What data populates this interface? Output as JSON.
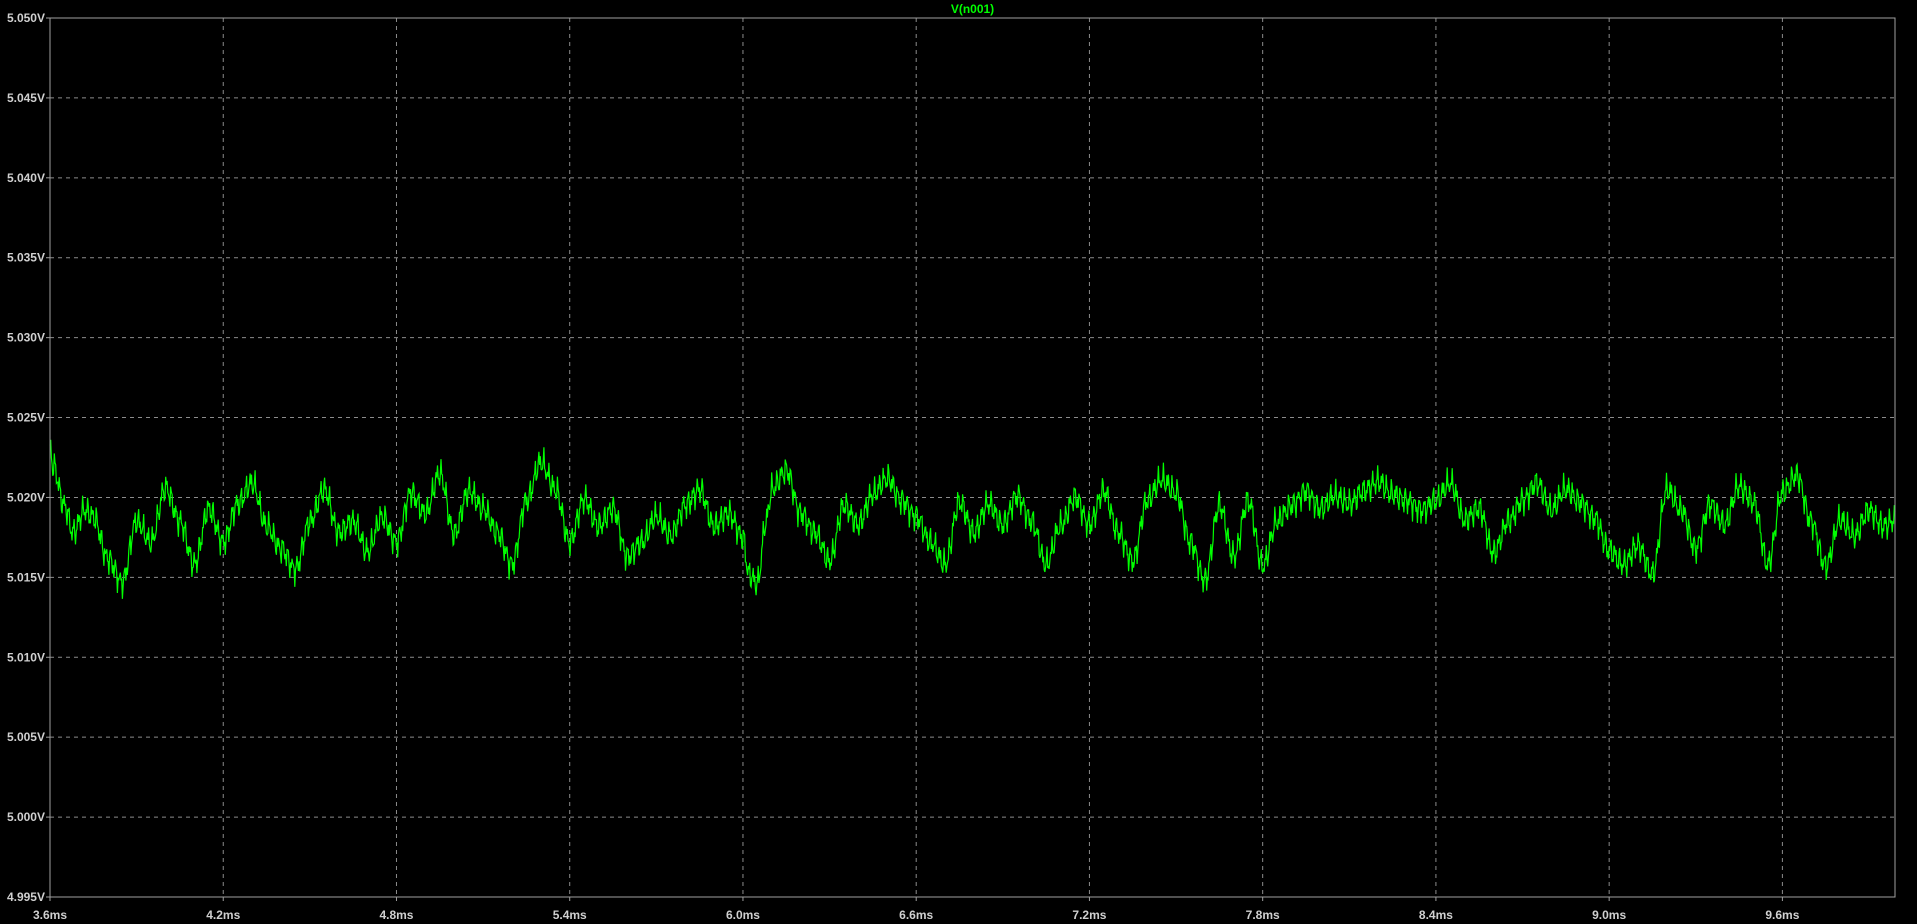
{
  "window": {
    "background": "#000000",
    "axis_color": "#A0A0A0",
    "grid_color": "#8C8C8C",
    "label_color": "#D0D0D0"
  },
  "chart_data": {
    "type": "line",
    "title": "V(n001)",
    "grid": true,
    "grid_style": "dashed",
    "x_ticks": [
      "3.6ms",
      "4.2ms",
      "4.8ms",
      "5.4ms",
      "6.0ms",
      "6.6ms",
      "7.2ms",
      "7.8ms",
      "8.4ms",
      "9.0ms",
      "9.6ms"
    ],
    "y_ticks": [
      "4.995V",
      "5.000V",
      "5.005V",
      "5.010V",
      "5.015V",
      "5.020V",
      "5.025V",
      "5.030V",
      "5.035V",
      "5.040V",
      "5.045V",
      "5.050V"
    ],
    "xlim": [
      3.6,
      9.99
    ],
    "ylim": [
      4.995,
      5.05
    ],
    "x_unit": "ms",
    "y_unit": "V",
    "series": [
      {
        "name": "V(n001)",
        "color": "#00FF00",
        "x": [
          3.6,
          3.61,
          3.65,
          3.68,
          3.72,
          3.75,
          3.8,
          3.85,
          3.9,
          3.95,
          4.0,
          4.05,
          4.1,
          4.15,
          4.2,
          4.25,
          4.3,
          4.35,
          4.4,
          4.45,
          4.5,
          4.55,
          4.6,
          4.65,
          4.7,
          4.75,
          4.8,
          4.85,
          4.9,
          4.95,
          5.0,
          5.05,
          5.1,
          5.15,
          5.2,
          5.25,
          5.3,
          5.35,
          5.4,
          5.45,
          5.5,
          5.55,
          5.6,
          5.65,
          5.7,
          5.75,
          5.8,
          5.85,
          5.9,
          5.95,
          6.0,
          6.02,
          6.05,
          6.08,
          6.1,
          6.15,
          6.2,
          6.25,
          6.3,
          6.35,
          6.4,
          6.45,
          6.5,
          6.55,
          6.6,
          6.65,
          6.7,
          6.75,
          6.8,
          6.85,
          6.9,
          6.95,
          7.0,
          7.05,
          7.1,
          7.15,
          7.2,
          7.25,
          7.3,
          7.35,
          7.4,
          7.45,
          7.5,
          7.55,
          7.6,
          7.65,
          7.7,
          7.75,
          7.8,
          7.85,
          7.9,
          7.95,
          8.0,
          8.05,
          8.1,
          8.15,
          8.2,
          8.25,
          8.3,
          8.35,
          8.4,
          8.45,
          8.5,
          8.55,
          8.6,
          8.65,
          8.7,
          8.75,
          8.8,
          8.85,
          8.9,
          8.95,
          9.0,
          9.05,
          9.1,
          9.15,
          9.2,
          9.25,
          9.3,
          9.35,
          9.4,
          9.45,
          9.5,
          9.55,
          9.6,
          9.65,
          9.7,
          9.75,
          9.8,
          9.85,
          9.9,
          9.95,
          9.99
        ],
        "y": [
          5.0232,
          5.022,
          5.0195,
          5.0178,
          5.0192,
          5.0188,
          5.0162,
          5.0147,
          5.0185,
          5.0172,
          5.0206,
          5.0185,
          5.0158,
          5.0193,
          5.0172,
          5.0196,
          5.0209,
          5.0182,
          5.0168,
          5.0155,
          5.0185,
          5.0205,
          5.0178,
          5.0185,
          5.0166,
          5.0188,
          5.0172,
          5.0203,
          5.019,
          5.0215,
          5.0177,
          5.0204,
          5.0193,
          5.0178,
          5.0158,
          5.0198,
          5.0222,
          5.0205,
          5.0172,
          5.0199,
          5.0182,
          5.0193,
          5.0163,
          5.0172,
          5.0188,
          5.0176,
          5.0195,
          5.0205,
          5.0182,
          5.019,
          5.0175,
          5.0152,
          5.0146,
          5.0185,
          5.0205,
          5.0217,
          5.019,
          5.0178,
          5.016,
          5.0195,
          5.0183,
          5.0202,
          5.0212,
          5.0198,
          5.0188,
          5.0172,
          5.0158,
          5.0197,
          5.0178,
          5.0196,
          5.0183,
          5.0201,
          5.0185,
          5.0158,
          5.0182,
          5.02,
          5.0183,
          5.0204,
          5.0178,
          5.016,
          5.0198,
          5.0211,
          5.0203,
          5.0172,
          5.0148,
          5.0195,
          5.0163,
          5.0198,
          5.0157,
          5.0185,
          5.0195,
          5.0204,
          5.0193,
          5.0201,
          5.0196,
          5.0204,
          5.021,
          5.0202,
          5.0198,
          5.0192,
          5.0198,
          5.0209,
          5.0186,
          5.0193,
          5.0165,
          5.0185,
          5.0198,
          5.0209,
          5.0192,
          5.0205,
          5.0197,
          5.0187,
          5.0167,
          5.0158,
          5.017,
          5.0152,
          5.0205,
          5.0192,
          5.0168,
          5.0196,
          5.0183,
          5.0207,
          5.0197,
          5.0158,
          5.0203,
          5.0214,
          5.0185,
          5.0157,
          5.0186,
          5.0176,
          5.0192,
          5.0182,
          5.0186
        ]
      }
    ]
  }
}
